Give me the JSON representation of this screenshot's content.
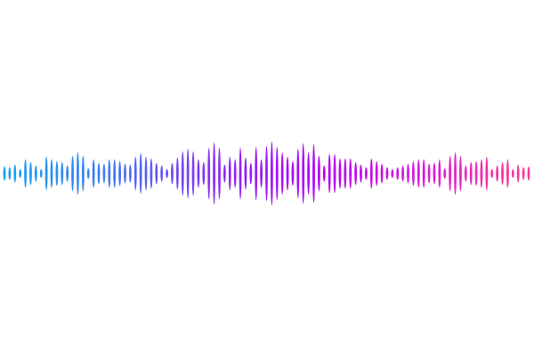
{
  "waveform": {
    "gradient_colors": [
      "#12a4f2",
      "#3f7bf0",
      "#8a2cf5",
      "#b300f5",
      "#d81ad8",
      "#ff3b8f"
    ],
    "background": "#ffffff",
    "amplitudes": [
      8,
      7,
      10,
      5,
      16,
      13,
      9,
      5,
      19,
      16,
      14,
      13,
      9,
      20,
      24,
      20,
      6,
      16,
      12,
      11,
      16,
      16,
      14,
      11,
      10,
      19,
      23,
      19,
      17,
      12,
      9,
      5,
      12,
      18,
      25,
      28,
      25,
      16,
      13,
      29,
      35,
      29,
      10,
      19,
      16,
      29,
      18,
      12,
      30,
      16,
      31,
      36,
      30,
      24,
      19,
      14,
      28,
      34,
      24,
      33,
      20,
      9,
      22,
      22,
      17,
      17,
      17,
      13,
      10,
      7,
      17,
      14,
      11,
      7,
      5,
      7,
      9,
      11,
      14,
      16,
      16,
      11,
      12,
      16,
      6,
      20,
      24,
      20,
      9,
      13,
      14,
      16,
      19,
      5,
      9,
      13,
      16,
      5,
      10,
      7,
      8
    ]
  }
}
